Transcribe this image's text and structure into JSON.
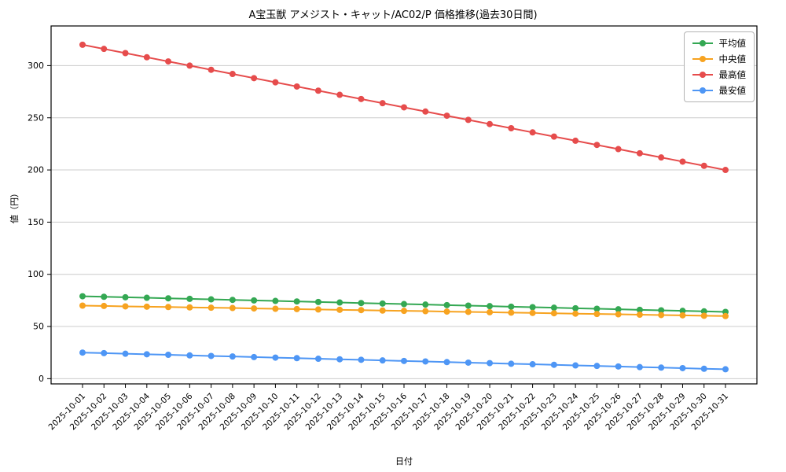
{
  "figure": {
    "title": "A宝玉獣 アメジスト・キャット/AC02/P 価格推移(過去30日間)",
    "xlabel": "日付",
    "ylabel": "値（円）"
  },
  "chart_data": {
    "type": "line",
    "title": "A宝玉獣 アメジスト・キャット/AC02/P 価格推移(過去30日間)",
    "xlabel": "日付",
    "ylabel": "値（円）",
    "grid": true,
    "legend_position": "upper right",
    "ylim": [
      -5,
      338
    ],
    "yticks": [
      0,
      50,
      100,
      150,
      200,
      250,
      300
    ],
    "x": [
      "2025-10-01",
      "2025-10-02",
      "2025-10-03",
      "2025-10-04",
      "2025-10-05",
      "2025-10-06",
      "2025-10-07",
      "2025-10-08",
      "2025-10-09",
      "2025-10-10",
      "2025-10-11",
      "2025-10-12",
      "2025-10-13",
      "2025-10-14",
      "2025-10-15",
      "2025-10-16",
      "2025-10-17",
      "2025-10-18",
      "2025-10-19",
      "2025-10-20",
      "2025-10-21",
      "2025-10-22",
      "2025-10-23",
      "2025-10-24",
      "2025-10-25",
      "2025-10-26",
      "2025-10-27",
      "2025-10-28",
      "2025-10-29",
      "2025-10-30",
      "2025-10-31"
    ],
    "series": [
      {
        "name": "平均値",
        "color": "#34a853",
        "values": [
          79,
          78.5,
          78,
          77.5,
          77,
          76.5,
          76,
          75.5,
          75,
          74.5,
          74,
          73.5,
          73,
          72.5,
          72,
          71.5,
          71,
          70.5,
          70,
          69.5,
          69,
          68.5,
          68,
          67.5,
          67,
          66.5,
          66,
          65.5,
          65,
          64.5,
          64
        ]
      },
      {
        "name": "中央値",
        "color": "#f7a320",
        "values": [
          70,
          69.7,
          69.3,
          69,
          68.7,
          68.3,
          68,
          67.7,
          67.3,
          67,
          66.7,
          66.3,
          66,
          65.7,
          65.3,
          65,
          64.7,
          64.3,
          64,
          63.7,
          63.3,
          63,
          62.7,
          62.3,
          62,
          61.7,
          61.3,
          61,
          60.7,
          60.3,
          60
        ]
      },
      {
        "name": "最高値",
        "color": "#e64c4c",
        "values": [
          320,
          316,
          312,
          308,
          304,
          300,
          296,
          292,
          288,
          284,
          280,
          276,
          272,
          268,
          264,
          260,
          256,
          252,
          248,
          244,
          240,
          236,
          232,
          228,
          224,
          220,
          216,
          212,
          208,
          204,
          200
        ]
      },
      {
        "name": "最安値",
        "color": "#4e96f5",
        "values": [
          25,
          24.5,
          23.9,
          23.4,
          22.9,
          22.3,
          21.8,
          21.3,
          20.7,
          20.2,
          19.7,
          19.1,
          18.6,
          18.1,
          17.5,
          17,
          16.5,
          15.9,
          15.4,
          14.9,
          14.3,
          13.8,
          13.3,
          12.7,
          12.2,
          11.7,
          11.1,
          10.6,
          10.1,
          9.5,
          9
        ]
      }
    ]
  }
}
